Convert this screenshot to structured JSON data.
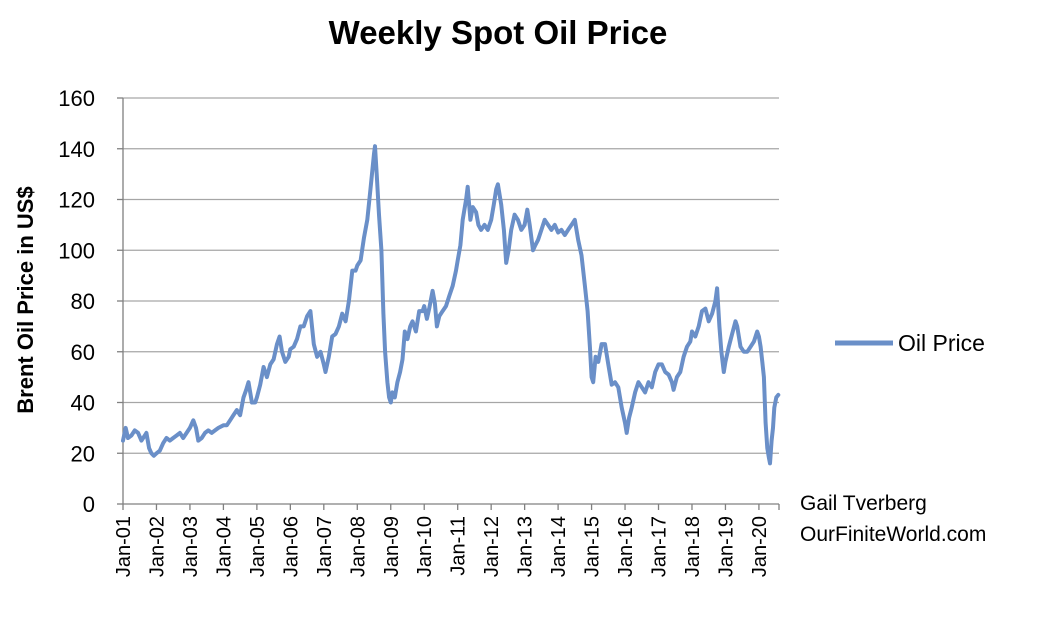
{
  "chart_data": {
    "type": "line",
    "title": "Weekly Spot Oil Price",
    "ylabel": "Brent Oil Price in US$",
    "xlabel": "",
    "ylim": [
      0,
      160
    ],
    "yticks": [
      "0",
      "20",
      "40",
      "60",
      "80",
      "100",
      "120",
      "140",
      "160"
    ],
    "xticks": [
      "Jan-01",
      "Jan-02",
      "Jan-03",
      "Jan-04",
      "Jan-05",
      "Jan-06",
      "Jan-07",
      "Jan-08",
      "Jan-09",
      "Jan-10",
      "Jan-11",
      "Jan-12",
      "Jan-13",
      "Jan-14",
      "Jan-15",
      "Jan-16",
      "Jan-17",
      "Jan-18",
      "Jan-19",
      "Jan-20"
    ],
    "xlim": [
      2001.0,
      2020.6
    ],
    "grid": true,
    "legend": "right",
    "series": [
      {
        "name": "Oil Price",
        "color": "#6a8fc8",
        "points": [
          [
            2001.0,
            25
          ],
          [
            2001.08,
            30
          ],
          [
            2001.15,
            26
          ],
          [
            2001.25,
            27
          ],
          [
            2001.35,
            29
          ],
          [
            2001.45,
            28
          ],
          [
            2001.55,
            25
          ],
          [
            2001.65,
            27
          ],
          [
            2001.7,
            28
          ],
          [
            2001.78,
            22
          ],
          [
            2001.85,
            20
          ],
          [
            2001.92,
            19
          ],
          [
            2002.0,
            20
          ],
          [
            2002.1,
            21
          ],
          [
            2002.2,
            24
          ],
          [
            2002.3,
            26
          ],
          [
            2002.4,
            25
          ],
          [
            2002.5,
            26
          ],
          [
            2002.6,
            27
          ],
          [
            2002.7,
            28
          ],
          [
            2002.8,
            26
          ],
          [
            2002.9,
            28
          ],
          [
            2003.0,
            30
          ],
          [
            2003.1,
            33
          ],
          [
            2003.18,
            30
          ],
          [
            2003.25,
            25
          ],
          [
            2003.35,
            26
          ],
          [
            2003.45,
            28
          ],
          [
            2003.55,
            29
          ],
          [
            2003.65,
            28
          ],
          [
            2003.75,
            29
          ],
          [
            2003.85,
            30
          ],
          [
            2004.0,
            31
          ],
          [
            2004.1,
            31
          ],
          [
            2004.2,
            33
          ],
          [
            2004.3,
            35
          ],
          [
            2004.4,
            37
          ],
          [
            2004.5,
            35
          ],
          [
            2004.6,
            42
          ],
          [
            2004.68,
            45
          ],
          [
            2004.75,
            48
          ],
          [
            2004.85,
            40
          ],
          [
            2004.95,
            40
          ],
          [
            2005.0,
            42
          ],
          [
            2005.1,
            47
          ],
          [
            2005.2,
            54
          ],
          [
            2005.3,
            50
          ],
          [
            2005.4,
            55
          ],
          [
            2005.5,
            57
          ],
          [
            2005.6,
            63
          ],
          [
            2005.68,
            66
          ],
          [
            2005.75,
            60
          ],
          [
            2005.85,
            56
          ],
          [
            2005.95,
            58
          ],
          [
            2006.0,
            61
          ],
          [
            2006.1,
            62
          ],
          [
            2006.2,
            65
          ],
          [
            2006.3,
            70
          ],
          [
            2006.4,
            70
          ],
          [
            2006.5,
            74
          ],
          [
            2006.6,
            76
          ],
          [
            2006.7,
            63
          ],
          [
            2006.8,
            58
          ],
          [
            2006.9,
            60
          ],
          [
            2007.0,
            55
          ],
          [
            2007.05,
            52
          ],
          [
            2007.15,
            58
          ],
          [
            2007.25,
            66
          ],
          [
            2007.35,
            67
          ],
          [
            2007.45,
            70
          ],
          [
            2007.55,
            75
          ],
          [
            2007.65,
            72
          ],
          [
            2007.75,
            80
          ],
          [
            2007.85,
            92
          ],
          [
            2007.95,
            92
          ],
          [
            2008.0,
            94
          ],
          [
            2008.1,
            96
          ],
          [
            2008.2,
            105
          ],
          [
            2008.3,
            112
          ],
          [
            2008.4,
            125
          ],
          [
            2008.5,
            138
          ],
          [
            2008.53,
            141
          ],
          [
            2008.58,
            130
          ],
          [
            2008.65,
            114
          ],
          [
            2008.72,
            100
          ],
          [
            2008.78,
            75
          ],
          [
            2008.83,
            60
          ],
          [
            2008.9,
            48
          ],
          [
            2008.95,
            42
          ],
          [
            2009.0,
            40
          ],
          [
            2009.05,
            44
          ],
          [
            2009.12,
            42
          ],
          [
            2009.2,
            48
          ],
          [
            2009.28,
            52
          ],
          [
            2009.35,
            57
          ],
          [
            2009.42,
            68
          ],
          [
            2009.5,
            65
          ],
          [
            2009.58,
            70
          ],
          [
            2009.65,
            72
          ],
          [
            2009.75,
            68
          ],
          [
            2009.85,
            76
          ],
          [
            2009.95,
            76
          ],
          [
            2010.0,
            78
          ],
          [
            2010.08,
            73
          ],
          [
            2010.15,
            77
          ],
          [
            2010.25,
            84
          ],
          [
            2010.32,
            79
          ],
          [
            2010.38,
            70
          ],
          [
            2010.45,
            74
          ],
          [
            2010.55,
            76
          ],
          [
            2010.65,
            78
          ],
          [
            2010.75,
            82
          ],
          [
            2010.85,
            86
          ],
          [
            2010.95,
            92
          ],
          [
            2011.0,
            96
          ],
          [
            2011.08,
            102
          ],
          [
            2011.15,
            112
          ],
          [
            2011.25,
            120
          ],
          [
            2011.3,
            125
          ],
          [
            2011.38,
            112
          ],
          [
            2011.45,
            117
          ],
          [
            2011.55,
            115
          ],
          [
            2011.62,
            110
          ],
          [
            2011.7,
            108
          ],
          [
            2011.8,
            110
          ],
          [
            2011.9,
            108
          ],
          [
            2012.0,
            112
          ],
          [
            2012.08,
            118
          ],
          [
            2012.15,
            124
          ],
          [
            2012.2,
            126
          ],
          [
            2012.3,
            118
          ],
          [
            2012.38,
            108
          ],
          [
            2012.45,
            95
          ],
          [
            2012.52,
            100
          ],
          [
            2012.6,
            108
          ],
          [
            2012.7,
            114
          ],
          [
            2012.8,
            112
          ],
          [
            2012.9,
            108
          ],
          [
            2013.0,
            110
          ],
          [
            2013.08,
            116
          ],
          [
            2013.15,
            110
          ],
          [
            2013.25,
            100
          ],
          [
            2013.32,
            102
          ],
          [
            2013.4,
            104
          ],
          [
            2013.5,
            108
          ],
          [
            2013.6,
            112
          ],
          [
            2013.7,
            110
          ],
          [
            2013.8,
            108
          ],
          [
            2013.9,
            110
          ],
          [
            2014.0,
            107
          ],
          [
            2014.1,
            108
          ],
          [
            2014.2,
            106
          ],
          [
            2014.3,
            108
          ],
          [
            2014.4,
            110
          ],
          [
            2014.5,
            112
          ],
          [
            2014.6,
            104
          ],
          [
            2014.7,
            98
          ],
          [
            2014.8,
            86
          ],
          [
            2014.88,
            76
          ],
          [
            2014.95,
            62
          ],
          [
            2015.0,
            50
          ],
          [
            2015.05,
            48
          ],
          [
            2015.12,
            58
          ],
          [
            2015.2,
            56
          ],
          [
            2015.3,
            63
          ],
          [
            2015.4,
            63
          ],
          [
            2015.5,
            55
          ],
          [
            2015.6,
            47
          ],
          [
            2015.7,
            48
          ],
          [
            2015.8,
            46
          ],
          [
            2015.9,
            38
          ],
          [
            2016.0,
            32
          ],
          [
            2016.05,
            28
          ],
          [
            2016.12,
            34
          ],
          [
            2016.2,
            38
          ],
          [
            2016.3,
            44
          ],
          [
            2016.4,
            48
          ],
          [
            2016.5,
            46
          ],
          [
            2016.6,
            44
          ],
          [
            2016.7,
            48
          ],
          [
            2016.8,
            46
          ],
          [
            2016.9,
            52
          ],
          [
            2017.0,
            55
          ],
          [
            2017.1,
            55
          ],
          [
            2017.2,
            52
          ],
          [
            2017.3,
            51
          ],
          [
            2017.4,
            48
          ],
          [
            2017.45,
            45
          ],
          [
            2017.55,
            50
          ],
          [
            2017.65,
            52
          ],
          [
            2017.75,
            58
          ],
          [
            2017.85,
            62
          ],
          [
            2017.95,
            64
          ],
          [
            2018.0,
            68
          ],
          [
            2018.1,
            66
          ],
          [
            2018.2,
            70
          ],
          [
            2018.3,
            76
          ],
          [
            2018.4,
            77
          ],
          [
            2018.5,
            72
          ],
          [
            2018.6,
            75
          ],
          [
            2018.7,
            80
          ],
          [
            2018.75,
            85
          ],
          [
            2018.82,
            70
          ],
          [
            2018.88,
            60
          ],
          [
            2018.95,
            52
          ],
          [
            2019.0,
            56
          ],
          [
            2019.1,
            62
          ],
          [
            2019.2,
            67
          ],
          [
            2019.3,
            72
          ],
          [
            2019.35,
            70
          ],
          [
            2019.45,
            62
          ],
          [
            2019.55,
            60
          ],
          [
            2019.65,
            60
          ],
          [
            2019.75,
            62
          ],
          [
            2019.85,
            64
          ],
          [
            2019.95,
            68
          ],
          [
            2020.0,
            66
          ],
          [
            2020.05,
            62
          ],
          [
            2020.1,
            56
          ],
          [
            2020.15,
            50
          ],
          [
            2020.2,
            32
          ],
          [
            2020.25,
            22
          ],
          [
            2020.3,
            18
          ],
          [
            2020.33,
            16
          ],
          [
            2020.38,
            25
          ],
          [
            2020.42,
            30
          ],
          [
            2020.46,
            38
          ],
          [
            2020.52,
            42
          ],
          [
            2020.58,
            43
          ]
        ]
      }
    ],
    "annotations": [
      "Gail Tverberg",
      "OurFiniteWorld.com"
    ]
  }
}
